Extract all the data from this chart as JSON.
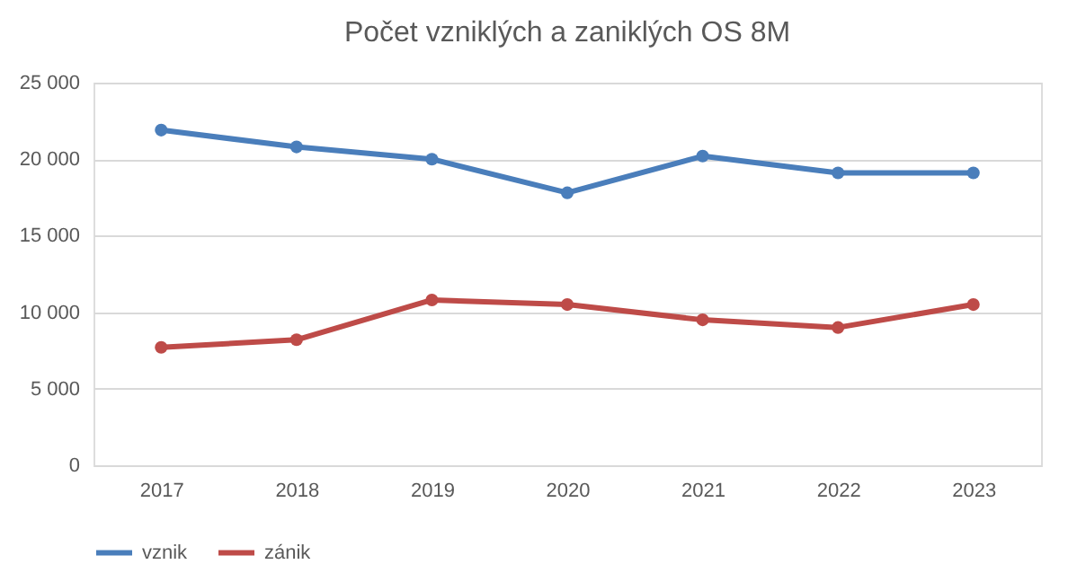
{
  "chart_data": {
    "type": "line",
    "title": "Počet vzniklých a zaniklých OS 8M",
    "categories": [
      "2017",
      "2018",
      "2019",
      "2020",
      "2021",
      "2022",
      "2023"
    ],
    "series": [
      {
        "name": "vznik",
        "color": "#4a7ebb",
        "values": [
          21900,
          20800,
          20000,
          17800,
          20200,
          19100,
          19100
        ]
      },
      {
        "name": "zánik",
        "color": "#be4b48",
        "values": [
          7700,
          8200,
          10800,
          10500,
          9500,
          9000,
          10500
        ]
      }
    ],
    "ylim": [
      0,
      25000
    ],
    "yticks": [
      0,
      {
        "value": 5000,
        "label": "5 000"
      },
      {
        "value": 10000,
        "label": "10 000"
      },
      {
        "value": 15000,
        "label": "15 000"
      },
      {
        "value": 20000,
        "label": "20 000"
      },
      {
        "value": 25000,
        "label": "25 000"
      }
    ],
    "grid": "y",
    "legend": "bottom",
    "marker": "circle",
    "line_style": "solid"
  }
}
